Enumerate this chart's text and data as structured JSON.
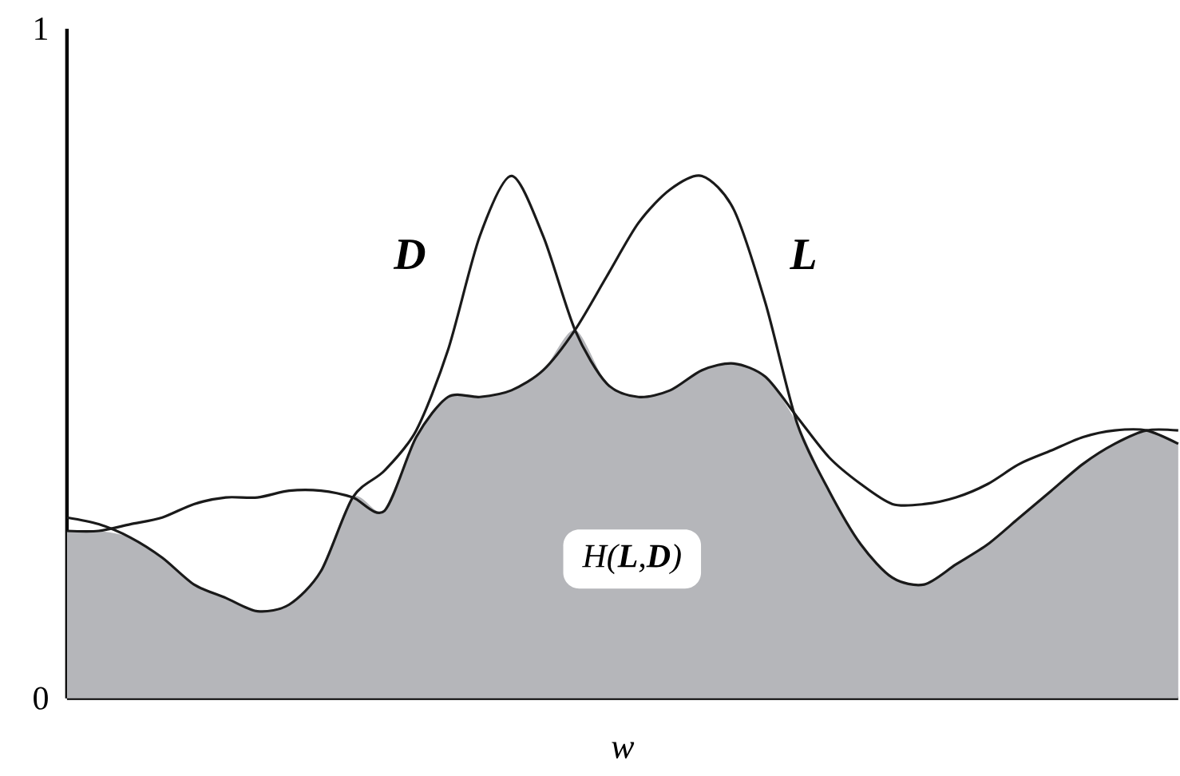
{
  "chart_data": {
    "type": "line",
    "xlabel": "w",
    "categories": [
      null,
      null,
      null,
      null,
      null,
      null,
      null,
      null,
      null,
      null,
      null,
      null,
      null,
      null,
      null,
      null,
      null,
      null,
      null,
      null,
      null,
      null,
      null,
      null,
      null,
      null,
      null,
      null,
      null,
      null,
      null,
      null,
      null,
      null,
      null,
      null
    ],
    "ylim": [
      0,
      1
    ],
    "yticks": [
      0,
      1
    ],
    "tick_labels": "y",
    "series": [
      {
        "name": "H(**L**,**D**)",
        "type": "area",
        "color": "#b5b6ba",
        "values": [
          0.25,
          0.25,
          0.24,
          0.21,
          0.17,
          0.15,
          0.13,
          0.14,
          0.19,
          0.3,
          0.28,
          0.39,
          0.45,
          0.45,
          0.46,
          0.49,
          0.55,
          0.47,
          0.45,
          0.46,
          0.49,
          0.5,
          0.48,
          0.41,
          0.31,
          0.23,
          0.18,
          0.17,
          0.2,
          0.23,
          0.27,
          0.31,
          0.35,
          0.38,
          0.4,
          0.38
        ]
      },
      {
        "name": "D",
        "color": "#1a1a1a",
        "values": [
          0.27,
          0.26,
          0.24,
          0.21,
          0.17,
          0.15,
          0.13,
          0.14,
          0.19,
          0.3,
          0.34,
          0.4,
          0.52,
          0.69,
          0.78,
          0.69,
          0.55,
          0.47,
          0.45,
          0.46,
          0.49,
          0.5,
          0.48,
          0.42,
          0.36,
          0.32,
          0.29,
          0.29,
          0.3,
          0.32,
          0.35,
          0.37,
          0.39,
          0.4,
          0.4,
          0.38
        ]
      },
      {
        "name": "L",
        "color": "#1a1a1a",
        "values": [
          0.25,
          0.25,
          0.26,
          0.27,
          0.29,
          0.3,
          0.3,
          0.31,
          0.31,
          0.3,
          0.28,
          0.39,
          0.45,
          0.45,
          0.46,
          0.49,
          0.55,
          0.63,
          0.71,
          0.76,
          0.78,
          0.73,
          0.59,
          0.41,
          0.31,
          0.23,
          0.18,
          0.17,
          0.2,
          0.23,
          0.27,
          0.31,
          0.35,
          0.38,
          0.4,
          0.4
        ]
      }
    ]
  }
}
